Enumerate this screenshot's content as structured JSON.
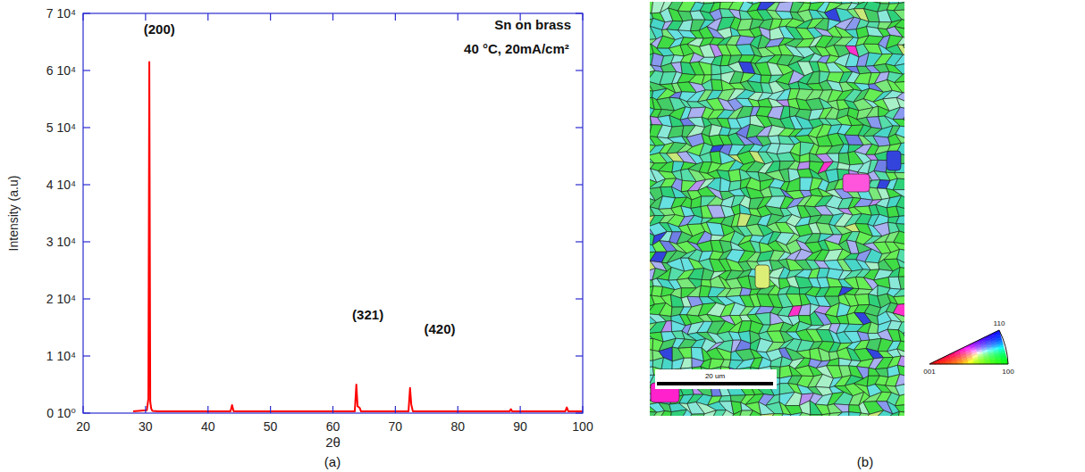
{
  "chart_data": {
    "type": "line",
    "xlabel": "2θ",
    "ylabel": "Intensity (a.u)",
    "x": [
      28,
      30.2,
      30.45,
      30.6,
      30.75,
      30.9,
      31.1,
      32.0,
      43.6,
      43.85,
      44.1,
      63.5,
      63.75,
      63.95,
      64.3,
      64.5,
      72.1,
      72.35,
      72.55,
      72.8,
      88.3,
      88.5,
      88.7,
      97.2,
      97.45,
      97.7,
      100
    ],
    "values": [
      300,
      500,
      2500,
      61500,
      2000,
      800,
      400,
      300,
      300,
      1400,
      300,
      300,
      5000,
      1200,
      900,
      300,
      300,
      4400,
      1500,
      300,
      300,
      700,
      300,
      300,
      1000,
      300,
      300
    ],
    "color": "#ff0000",
    "xlim": [
      20,
      100
    ],
    "ylim": [
      0,
      70000
    ],
    "xticks": [
      20,
      30,
      40,
      50,
      60,
      70,
      80,
      90,
      100
    ],
    "yticks": [
      {
        "value": 0,
        "label": "0 10⁰"
      },
      {
        "value": 10000,
        "label": "1 10⁴"
      },
      {
        "value": 20000,
        "label": "2 10⁴"
      },
      {
        "value": 30000,
        "label": "3 10⁴"
      },
      {
        "value": 40000,
        "label": "4 10⁴"
      },
      {
        "value": 50000,
        "label": "5 10⁴"
      },
      {
        "value": 60000,
        "label": "6 10⁴"
      },
      {
        "value": 70000,
        "label": "7 10⁴"
      }
    ],
    "annotations": [
      {
        "text": "(200)",
        "x": 32.2,
        "y": 66400
      },
      {
        "text": "(321)",
        "x": 65.6,
        "y": 16400
      },
      {
        "text": "(420)",
        "x": 77.1,
        "y": 13900
      },
      {
        "text": "Sn on brass",
        "x": 92.0,
        "y": 67200
      },
      {
        "text": "40 °C, 20mA/cm²",
        "x": 89.4,
        "y": 63000
      }
    ]
  },
  "ebsd_map": {
    "scale_bar": "20 um",
    "key_labels": [
      "110",
      "001",
      "100"
    ]
  },
  "panel_labels": [
    "(a)",
    "(b)"
  ]
}
